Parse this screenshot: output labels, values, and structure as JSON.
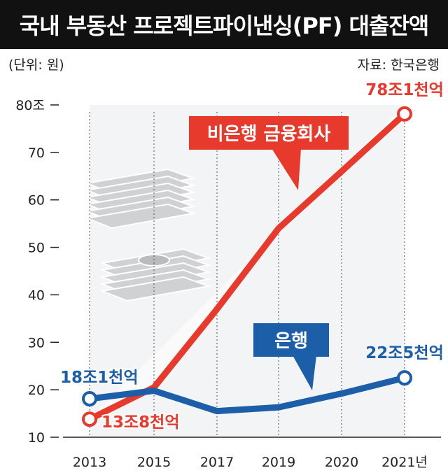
{
  "chart_data": {
    "type": "line",
    "title": "국내 부동산 프로젝트파이낸싱(PF) 대출잔액",
    "unit_label": "(단위: 원)",
    "source": "자료: 한국은행",
    "x": [
      "2013",
      "2015",
      "2017",
      "2019",
      "2020",
      "2021년"
    ],
    "y_ticks": [
      "10",
      "20",
      "30",
      "40",
      "50",
      "60",
      "70",
      "80조"
    ],
    "ylim": [
      10,
      80
    ],
    "series": [
      {
        "name": "비은행 금융회사",
        "color": "#e8392d",
        "values": [
          13.8,
          20.5,
          37,
          54,
          66,
          78.1
        ],
        "start_label": "13조8천억",
        "end_label": "78조1천억"
      },
      {
        "name": "은행",
        "color": "#1d5ea8",
        "values": [
          18.1,
          19.8,
          15.5,
          16.3,
          19.2,
          22.5
        ],
        "start_label": "18조1천억",
        "end_label": "22조5천억"
      }
    ]
  }
}
